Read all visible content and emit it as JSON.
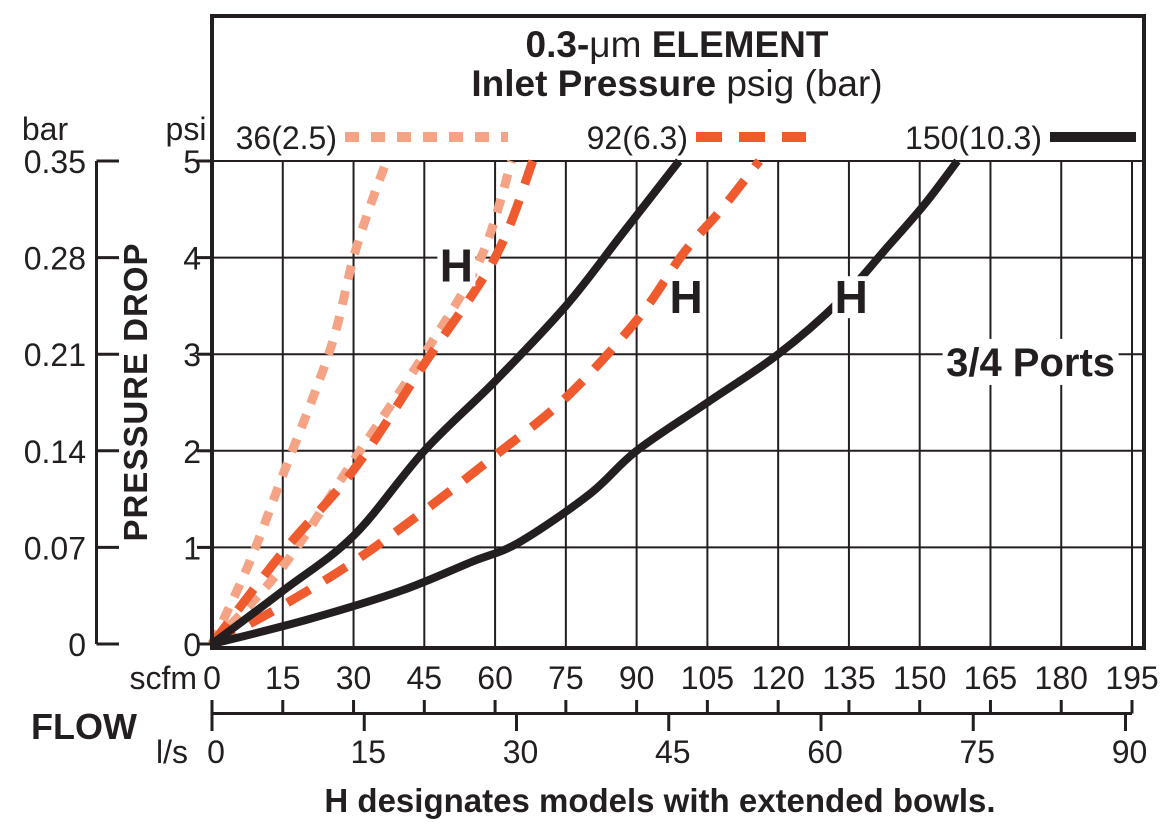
{
  "page": {
    "background": "#ffffff",
    "ink": "#231F20"
  },
  "header": {
    "title_line1": {
      "bold_prefix": "0.3-",
      "micron_unit": "μm",
      "bold_suffix": " ELEMENT"
    },
    "title_line2": {
      "bold": "Inlet Pressure",
      "regular": " psig (bar)"
    }
  },
  "legend": {
    "items": [
      {
        "label": "36(2.5)",
        "color": "#F4A385",
        "style": "dotted"
      },
      {
        "label": "92(6.3)",
        "color": "#EF5B2E",
        "style": "dashed"
      },
      {
        "label": "150(10.3)",
        "color": "#231F20",
        "style": "solid"
      }
    ]
  },
  "axes": {
    "pressure_drop_title": "PRESSURE DROP",
    "bar": {
      "unit": "bar",
      "ticks": [
        "0.35",
        "0.28",
        "0.21",
        "0.14",
        "0.07",
        "0"
      ]
    },
    "psi": {
      "unit": "psi",
      "ticks": [
        "5",
        "4",
        "3",
        "2",
        "1",
        "0"
      ]
    },
    "flow_title": "FLOW",
    "scfm": {
      "unit": "scfm",
      "ticks": [
        0,
        15,
        30,
        45,
        60,
        75,
        90,
        105,
        120,
        135,
        150,
        165,
        180,
        195
      ]
    },
    "ls": {
      "unit": "l/s",
      "ticks": [
        0,
        15,
        30,
        45,
        60,
        75,
        90
      ]
    }
  },
  "annotations": {
    "h_labels": [
      {
        "text": "H",
        "scfm": 51.8,
        "psi": 3.92
      },
      {
        "text": "H",
        "scfm": 100.5,
        "psi": 3.59
      },
      {
        "text": "H",
        "scfm": 135.5,
        "psi": 3.59
      }
    ],
    "ports": {
      "text": "3/4 Ports",
      "scfm": 173.5,
      "psi": 2.92
    }
  },
  "caption": "H designates models with extended bowls.",
  "chart_data": {
    "type": "line",
    "title": "0.3-μm ELEMENT — Inlet Pressure psig (bar)",
    "xlabel": "FLOW",
    "ylabel": "PRESSURE DROP",
    "x_units": [
      "scfm",
      "l/s"
    ],
    "y_units": [
      "psi",
      "bar"
    ],
    "xlim_scfm": [
      0,
      195
    ],
    "ylim_psi": [
      0,
      5
    ],
    "bar_axis_ticks": [
      0.35,
      0.28,
      0.21,
      0.14,
      0.07,
      0
    ],
    "ls_axis_ticks": [
      0,
      15,
      30,
      45,
      60,
      75,
      90
    ],
    "grid": true,
    "legend_position": "top",
    "series": [
      {
        "name": "36(2.5) standard",
        "inlet_psig": 36,
        "inlet_bar": 2.5,
        "model": "standard",
        "color": "#F4A385",
        "dash": "14 12",
        "width": 9,
        "points_scfm_psi": [
          [
            0,
            0
          ],
          [
            8,
            0.85
          ],
          [
            15,
            1.75
          ],
          [
            21,
            2.5
          ],
          [
            26,
            3.2
          ],
          [
            30,
            4.0
          ],
          [
            34,
            4.6
          ],
          [
            37,
            5.0
          ]
        ]
      },
      {
        "name": "36(2.5) H",
        "inlet_psig": 36,
        "inlet_bar": 2.5,
        "model": "H extended bowl",
        "color": "#F4A385",
        "dash": "14 12",
        "width": 9,
        "points_scfm_psi": [
          [
            0,
            0
          ],
          [
            15,
            0.8
          ],
          [
            30,
            1.9
          ],
          [
            45,
            3.0
          ],
          [
            57,
            4.0
          ],
          [
            63.5,
            5.0
          ]
        ]
      },
      {
        "name": "92(6.3) standard",
        "inlet_psig": 92,
        "inlet_bar": 6.3,
        "model": "standard",
        "color": "#EF5B2E",
        "dash": "26 17",
        "width": 9,
        "points_scfm_psi": [
          [
            0,
            0
          ],
          [
            15,
            0.95
          ],
          [
            30,
            1.8
          ],
          [
            45,
            2.9
          ],
          [
            60,
            4.0
          ],
          [
            68,
            5.0
          ]
        ]
      },
      {
        "name": "92(6.3) H",
        "inlet_psig": 92,
        "inlet_bar": 6.3,
        "model": "H extended bowl",
        "color": "#EF5B2E",
        "dash": "26 17",
        "width": 9,
        "points_scfm_psi": [
          [
            0,
            0
          ],
          [
            15,
            0.4
          ],
          [
            30,
            0.85
          ],
          [
            45,
            1.38
          ],
          [
            60,
            1.95
          ],
          [
            75,
            2.55
          ],
          [
            90,
            3.35
          ],
          [
            100,
            4.05
          ],
          [
            108,
            4.5
          ],
          [
            116,
            5.0
          ]
        ]
      },
      {
        "name": "150(10.3) standard",
        "inlet_psig": 150,
        "inlet_bar": 10.3,
        "model": "standard",
        "color": "#231F20",
        "dash": null,
        "width": 8,
        "points_scfm_psi": [
          [
            0,
            0
          ],
          [
            15,
            0.55
          ],
          [
            30,
            1.12
          ],
          [
            45,
            2.0
          ],
          [
            60,
            2.72
          ],
          [
            75,
            3.5
          ],
          [
            87,
            4.25
          ],
          [
            99,
            5.0
          ]
        ]
      },
      {
        "name": "150(10.3) H",
        "inlet_psig": 150,
        "inlet_bar": 10.3,
        "model": "H extended bowl",
        "color": "#231F20",
        "dash": null,
        "width": 8,
        "points_scfm_psi": [
          [
            0,
            0
          ],
          [
            20,
            0.25
          ],
          [
            40,
            0.55
          ],
          [
            55,
            0.85
          ],
          [
            65,
            1.05
          ],
          [
            80,
            1.55
          ],
          [
            90,
            2.0
          ],
          [
            105,
            2.5
          ],
          [
            120,
            3.0
          ],
          [
            133,
            3.55
          ],
          [
            143,
            4.1
          ],
          [
            151,
            4.55
          ],
          [
            158,
            5.0
          ]
        ]
      }
    ]
  }
}
